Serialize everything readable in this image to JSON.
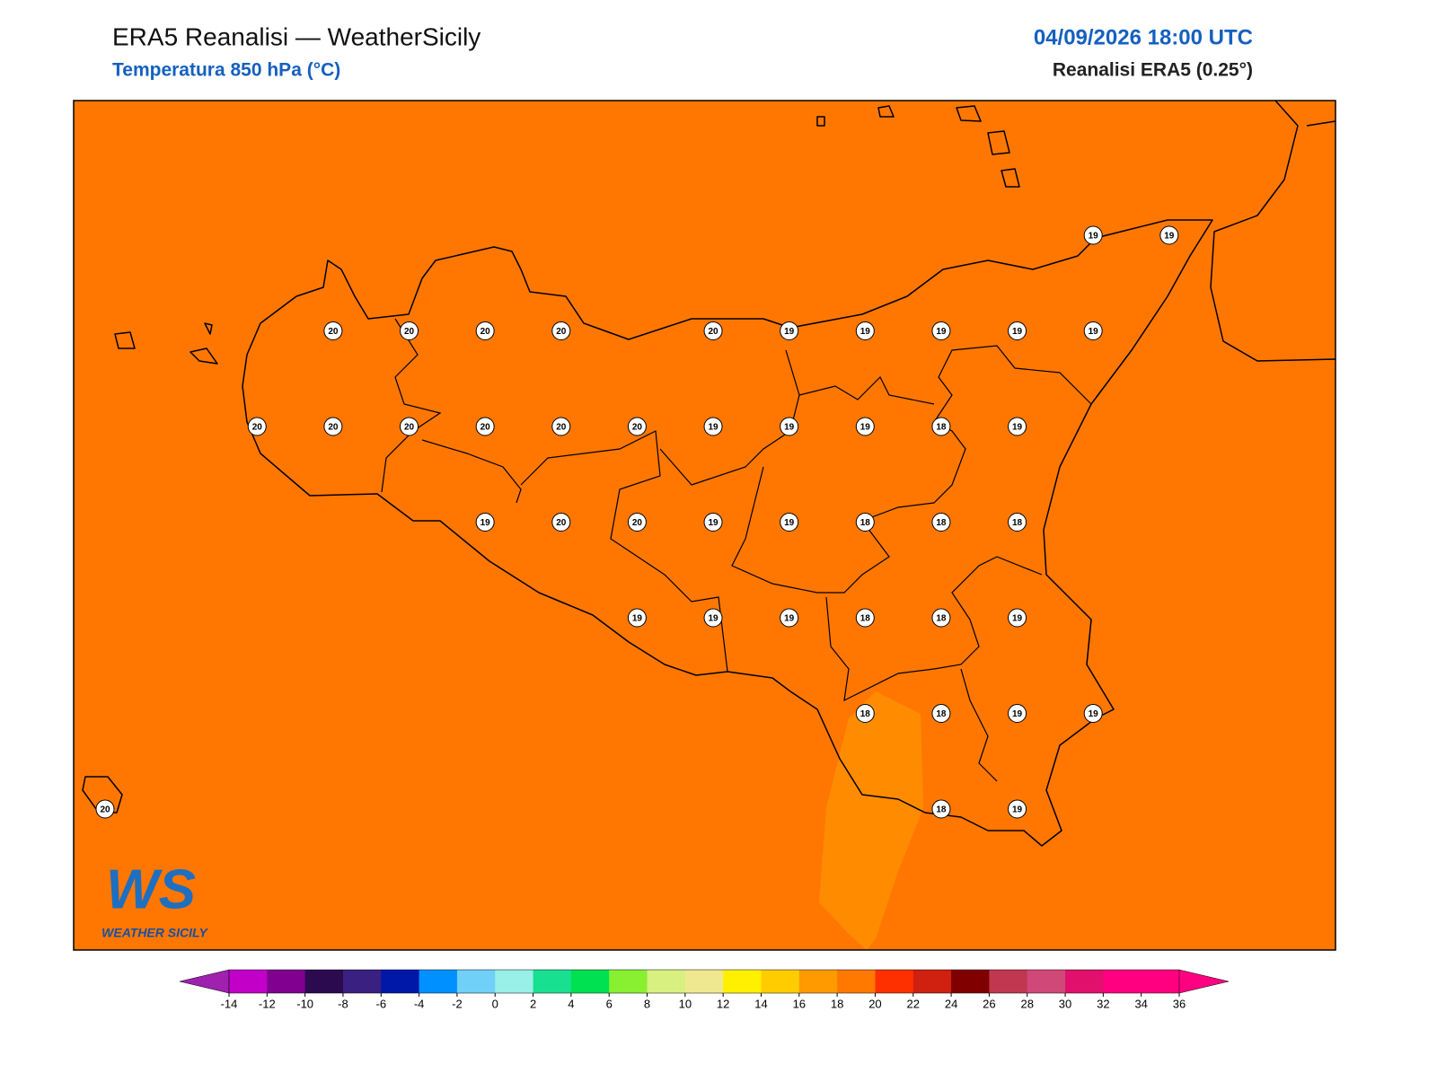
{
  "header": {
    "title": "ERA5 Reanalisi — WeatherSicily",
    "subtitle": "Temperatura 850 hPa (°C)",
    "datetime": "04/09/2026 18:00 UTC",
    "source": "Reanalisi ERA5 (0.25°)"
  },
  "map": {
    "background_color": "#ff7700",
    "stations": [
      19,
      19,
      20,
      20,
      20,
      20,
      20,
      19,
      19,
      19,
      19,
      19,
      20,
      20,
      20,
      20,
      20,
      20,
      19,
      19,
      19,
      18,
      19,
      19,
      20,
      20,
      19,
      19,
      18,
      18,
      18,
      19,
      19,
      19,
      18,
      18,
      19,
      18,
      18,
      19,
      19,
      20,
      18,
      19
    ]
  },
  "logo": {
    "mark": "WS",
    "name": "WEATHER SICILY"
  },
  "colorbar": {
    "ticks": [
      -14,
      -12,
      -10,
      -8,
      -6,
      -4,
      -2,
      0,
      2,
      4,
      6,
      8,
      10,
      12,
      14,
      16,
      18,
      20,
      22,
      24,
      26,
      28,
      30,
      32,
      34,
      36
    ],
    "under_color": "#a020b0",
    "over_color": "#ff0080",
    "colors": [
      "#c000c8",
      "#800090",
      "#2c0a50",
      "#3a2080",
      "#0018a8",
      "#0090ff",
      "#70d0f8",
      "#98f0e8",
      "#18e090",
      "#00e050",
      "#88f030",
      "#d8f080",
      "#f0e890",
      "#fff000",
      "#ffcc00",
      "#ff9a00",
      "#ff7800",
      "#ff3000",
      "#d02010",
      "#800000",
      "#c03850",
      "#d04878",
      "#e0106c",
      "#ff0080",
      "#ff0080"
    ]
  }
}
